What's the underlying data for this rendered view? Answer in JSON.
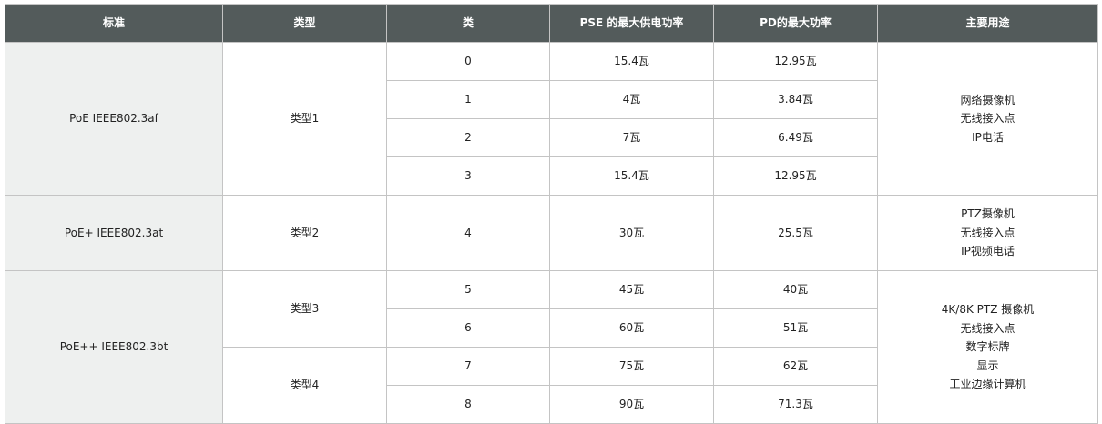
{
  "headers": [
    "标准",
    "类型",
    "类",
    "PSE 的最大供电功率",
    "PD的最大功率",
    "主要用途"
  ],
  "standards": [
    "PoE IEEE802.3af",
    "PoE+ IEEE802.3at",
    "PoE++ IEEE802.3bt"
  ],
  "types": [
    "类型1",
    "类型2",
    "类型3",
    "类型4"
  ],
  "rows": [
    {
      "class": "0",
      "pse": "15.4瓦",
      "pd": "12.95瓦"
    },
    {
      "class": "1",
      "pse": "4瓦",
      "pd": "3.84瓦"
    },
    {
      "class": "2",
      "pse": "7瓦",
      "pd": "6.49瓦"
    },
    {
      "class": "3",
      "pse": "15.4瓦",
      "pd": "12.95瓦"
    },
    {
      "class": "4",
      "pse": "30瓦",
      "pd": "25.5瓦"
    },
    {
      "class": "5",
      "pse": "45瓦",
      "pd": "40瓦"
    },
    {
      "class": "6",
      "pse": "60瓦",
      "pd": "51瓦"
    },
    {
      "class": "7",
      "pse": "75瓦",
      "pd": "62瓦"
    },
    {
      "class": "8",
      "pse": "90瓦",
      "pd": "71.3瓦"
    }
  ],
  "uses": [
    [
      "网络摄像机",
      "无线接入点",
      "IP电话"
    ],
    [
      "PTZ摄像机",
      "无线接入点",
      "IP视频电话"
    ],
    [
      "4K/8K PTZ 摄像机",
      "无线接入点",
      "数字标牌",
      "显示",
      "工业边缘计算机"
    ]
  ],
  "colors": {
    "header_bg": "#535b5b",
    "standard_bg": "#eef0ef",
    "border": "#c4c4c4"
  }
}
